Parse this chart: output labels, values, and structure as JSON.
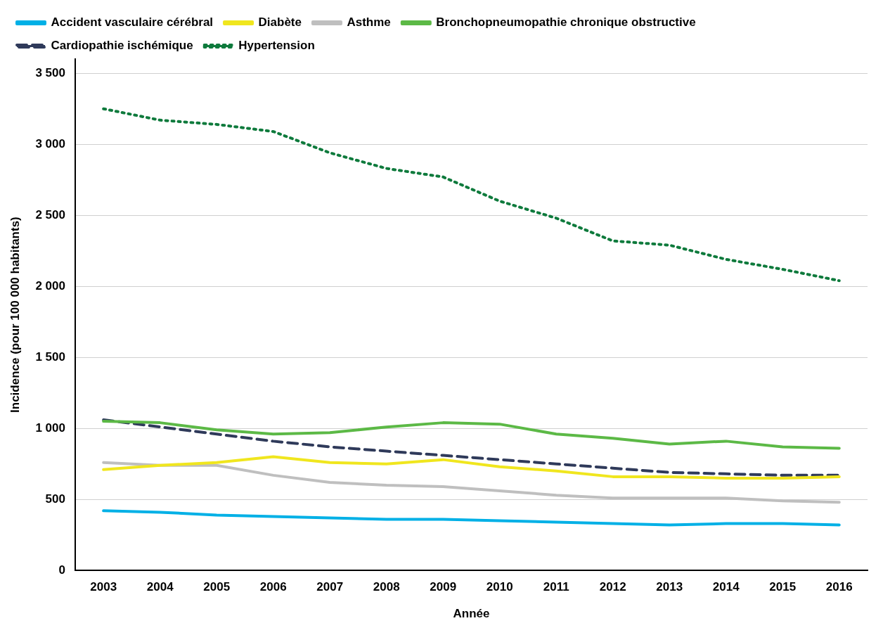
{
  "chart_data": {
    "type": "line",
    "xlabel": "Année",
    "ylabel": "Incidence (pour 100 000 habitants)",
    "categories": [
      "2003",
      "2004",
      "2005",
      "2006",
      "2007",
      "2008",
      "2009",
      "2010",
      "2011",
      "2012",
      "2013",
      "2014",
      "2015",
      "2016"
    ],
    "series": [
      {
        "name": "Accident vasculaire cérébral",
        "color": "#00b0e6",
        "values": [
          420,
          410,
          390,
          380,
          370,
          360,
          360,
          350,
          340,
          330,
          320,
          330,
          330,
          320
        ]
      },
      {
        "name": "Diabète",
        "color": "#f0e61e",
        "values": [
          710,
          740,
          760,
          800,
          760,
          750,
          780,
          730,
          700,
          660,
          660,
          650,
          650,
          660
        ]
      },
      {
        "name": "Asthme",
        "color": "#bfbfbf",
        "values": [
          760,
          740,
          740,
          670,
          620,
          600,
          590,
          560,
          530,
          510,
          510,
          510,
          490,
          480
        ]
      },
      {
        "name": "Bronchopneumopathie chronique obstructive",
        "color": "#5cb946",
        "values": [
          1050,
          1040,
          990,
          960,
          970,
          1010,
          1040,
          1030,
          960,
          930,
          890,
          910,
          870,
          860
        ]
      },
      {
        "name": "Cardiopathie ischémique",
        "color": "#2f3a5a",
        "line_style": "dashed",
        "values": [
          1060,
          1010,
          960,
          910,
          870,
          840,
          810,
          780,
          750,
          720,
          690,
          680,
          670,
          670
        ]
      },
      {
        "name": "Hypertension",
        "color": "#0e7a3c",
        "line_style": "dotted",
        "values": [
          3250,
          3170,
          3140,
          3090,
          2940,
          2830,
          2770,
          2600,
          2480,
          2320,
          2290,
          2190,
          2120,
          2040
        ]
      }
    ],
    "ylim": [
      0,
      3600
    ],
    "yticks": [
      {
        "value": 0,
        "label": "0"
      },
      {
        "value": 500,
        "label": "500"
      },
      {
        "value": 1000,
        "label": "1 000"
      },
      {
        "value": 1500,
        "label": "1 500"
      },
      {
        "value": 2000,
        "label": "2 000"
      },
      {
        "value": 2500,
        "label": "2 500"
      },
      {
        "value": 3000,
        "label": "3 000"
      },
      {
        "value": 3500,
        "label": "3 500"
      }
    ],
    "grid": "y",
    "legend": "top",
    "marker": "none",
    "line_style": "solid"
  }
}
